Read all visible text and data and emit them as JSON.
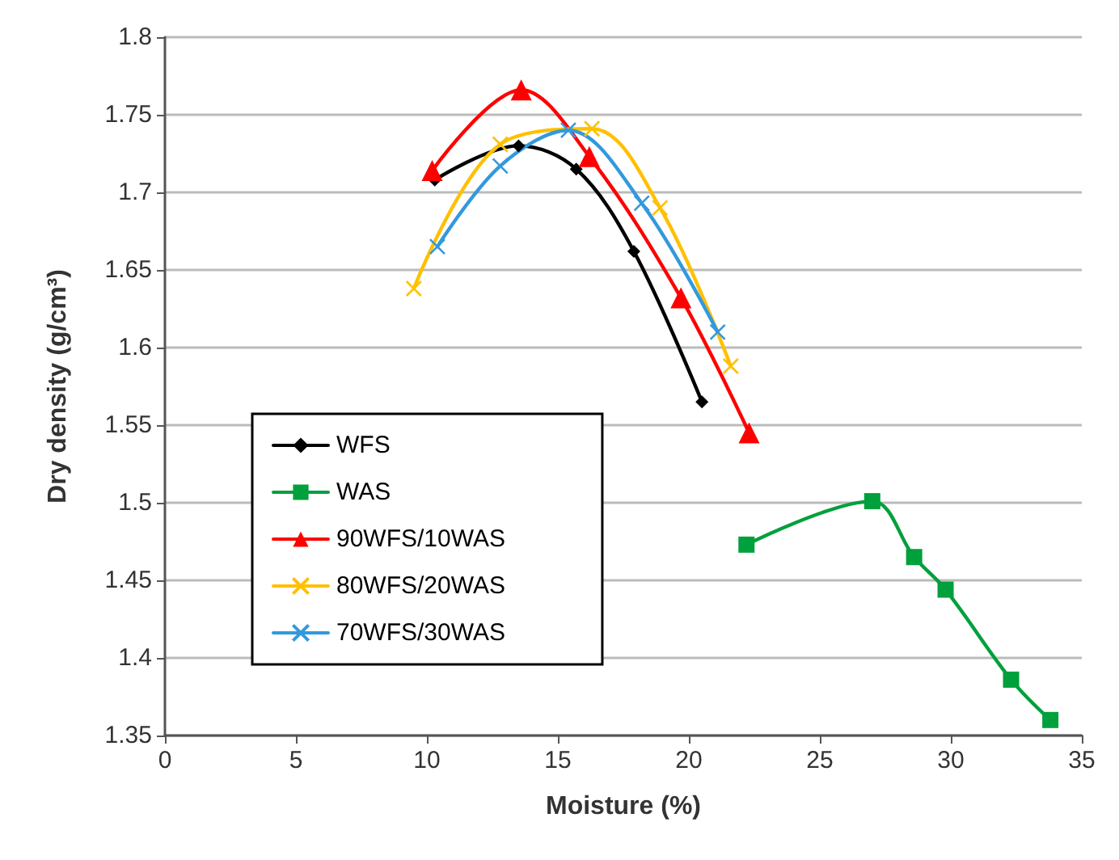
{
  "chart_data": {
    "type": "line",
    "xlabel": "Moisture (%)",
    "ylabel": "Dry density (g/cm³)",
    "xlim": [
      0,
      35
    ],
    "xticks": [
      0,
      5,
      10,
      15,
      20,
      25,
      30,
      35
    ],
    "ylim": [
      1.35,
      1.8
    ],
    "yticks": [
      1.35,
      1.4,
      1.45,
      1.5,
      1.55,
      1.6,
      1.65,
      1.7,
      1.75,
      1.8
    ],
    "grid": "y",
    "legend": "center left",
    "series": [
      {
        "name": "WFS",
        "color": "#000000",
        "marker": "diamond",
        "x": [
          10.3,
          13.5,
          15.7,
          17.9,
          20.5
        ],
        "values": [
          1.708,
          1.73,
          1.715,
          1.662,
          1.565
        ]
      },
      {
        "name": "WAS",
        "color": "#00a03c",
        "marker": "square",
        "x": [
          22.2,
          27,
          28.6,
          29.8,
          32.3,
          33.8
        ],
        "values": [
          1.473,
          1.501,
          1.465,
          1.444,
          1.386,
          1.36
        ]
      },
      {
        "name": "90WFS/10WAS",
        "color": "#ff0000",
        "marker": "triangle",
        "x": [
          10.2,
          13.6,
          16.2,
          19.7,
          22.3
        ],
        "values": [
          1.714,
          1.766,
          1.723,
          1.632,
          1.545
        ]
      },
      {
        "name": "80WFS/20WAS",
        "color": "#ffc000",
        "marker": "cross",
        "x": [
          9.5,
          12.8,
          16.3,
          18.9,
          21.6
        ],
        "values": [
          1.638,
          1.731,
          1.741,
          1.69,
          1.588
        ]
      },
      {
        "name": "70WFS/30WAS",
        "color": "#3399dd",
        "marker": "cross",
        "x": [
          10.4,
          12.8,
          15.4,
          18.2,
          21.1
        ],
        "values": [
          1.665,
          1.717,
          1.74,
          1.693,
          1.61
        ]
      }
    ]
  }
}
